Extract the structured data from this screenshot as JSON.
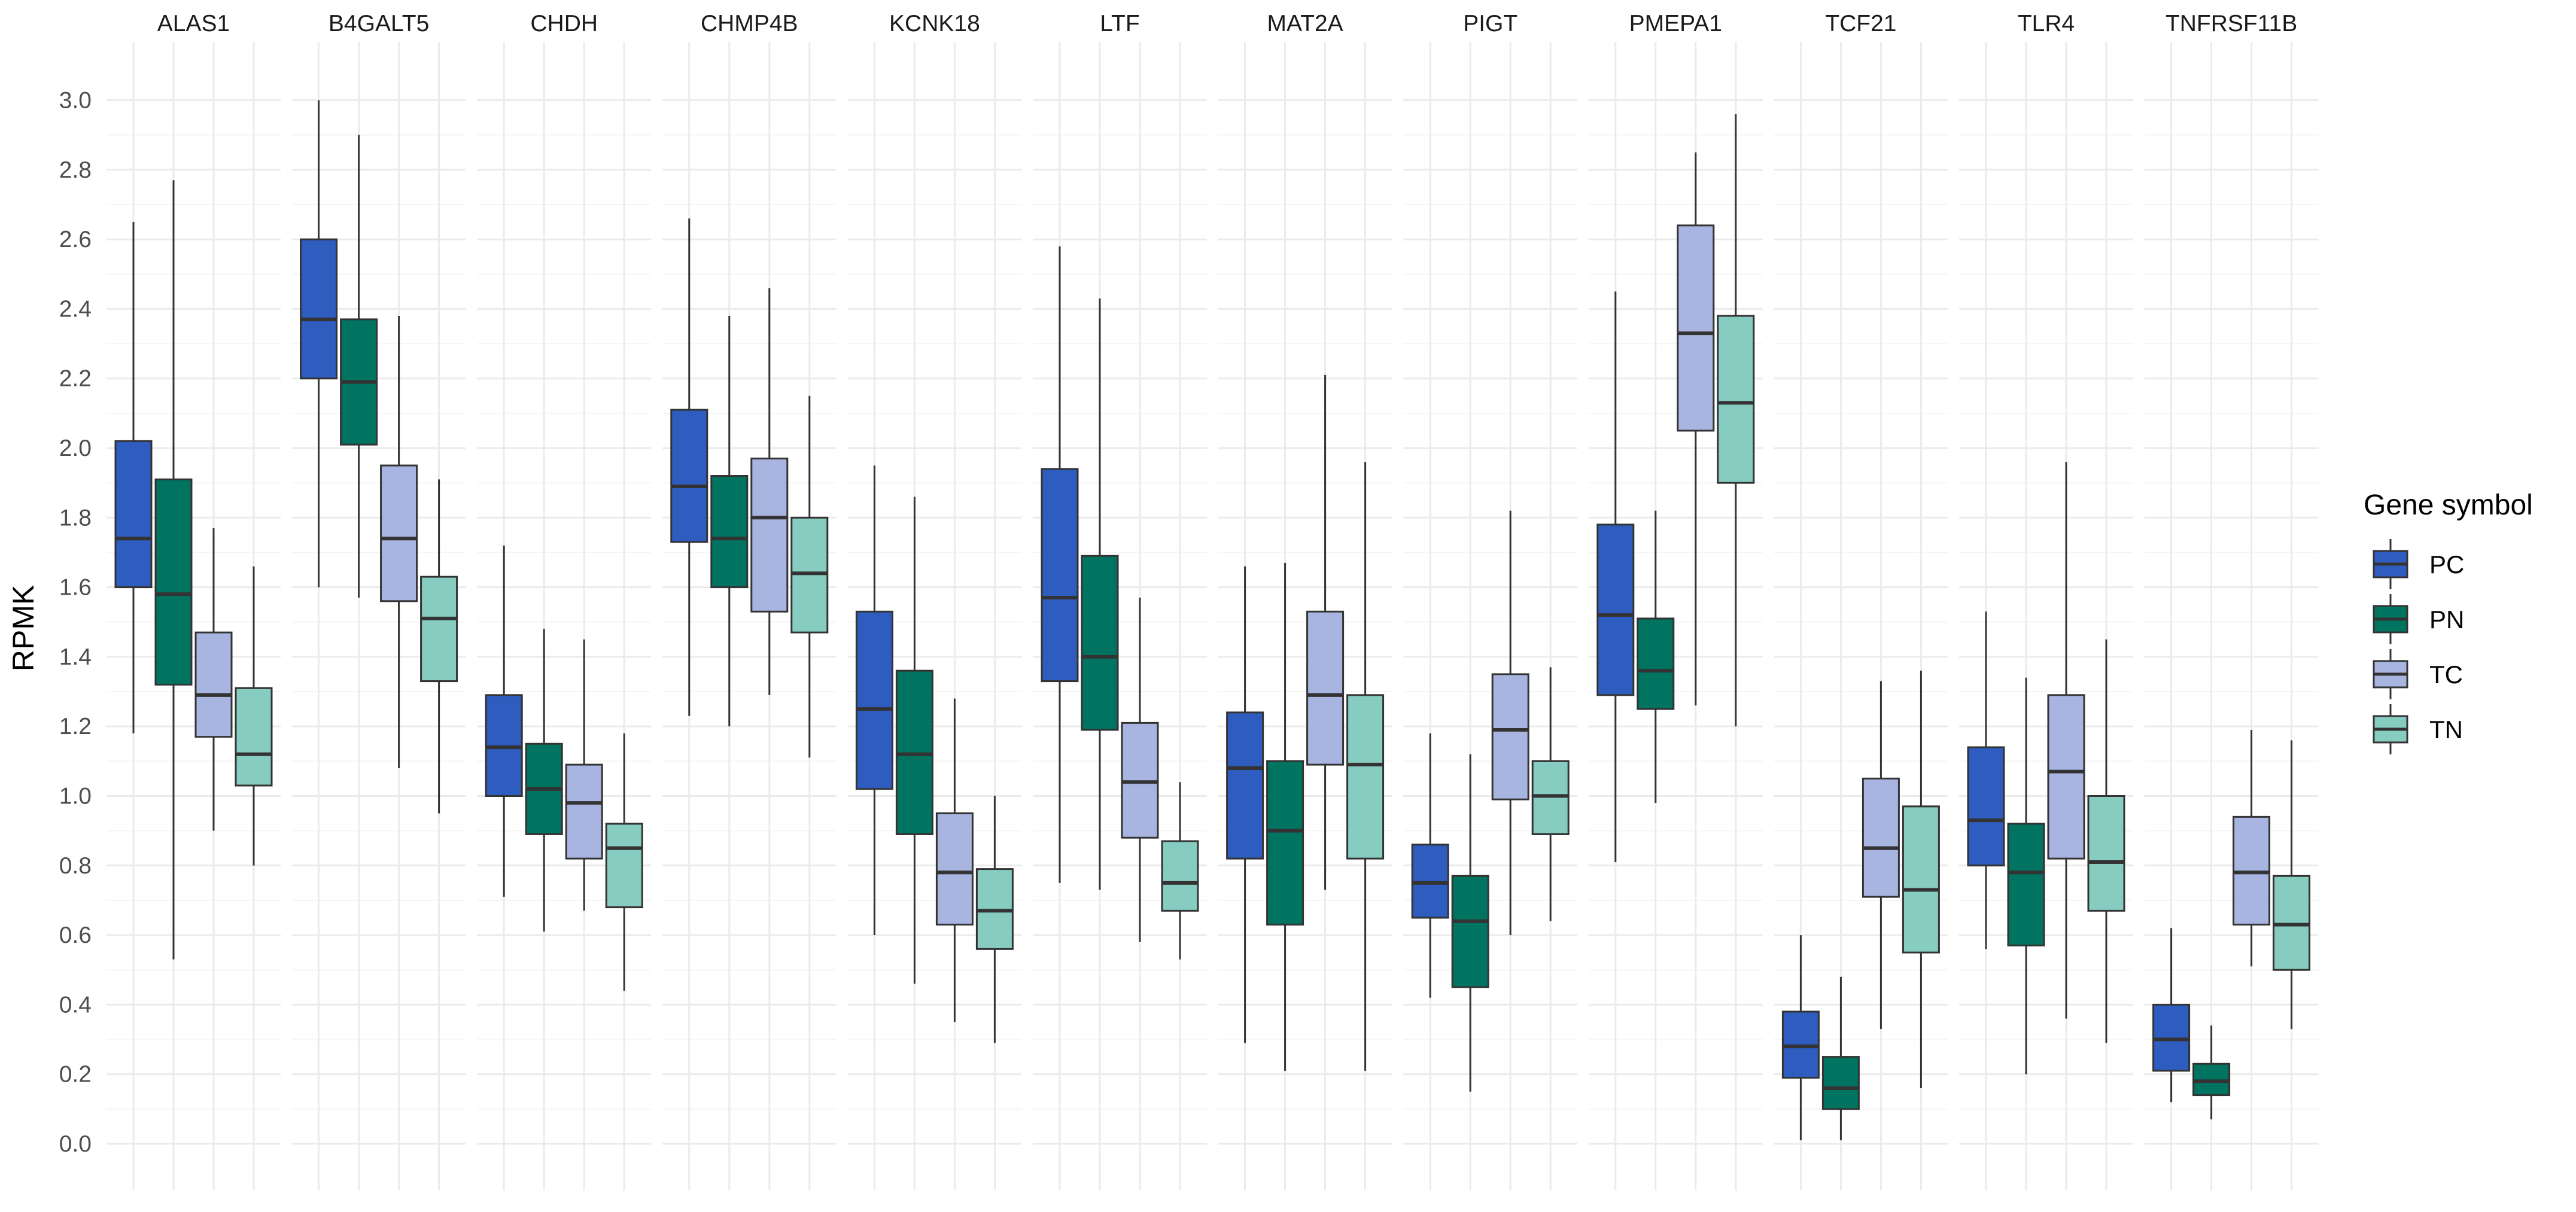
{
  "chart_data": {
    "type": "boxplot",
    "ylabel": "RPMK",
    "xlabel": "",
    "ylim": [
      -0.05,
      3.05
    ],
    "yticks": [
      "0.0",
      "0.2",
      "0.4",
      "0.6",
      "0.8",
      "1.0",
      "1.2",
      "1.4",
      "1.6",
      "1.8",
      "2.0",
      "2.2",
      "2.4",
      "2.6",
      "2.8",
      "3.0"
    ],
    "legend_title": "Gene symbol",
    "legend_position": "right",
    "groups": [
      {
        "name": "PC",
        "color": "#2E5CBF"
      },
      {
        "name": "PN",
        "color": "#007361"
      },
      {
        "name": "TC",
        "color": "#A8B5E0"
      },
      {
        "name": "TN",
        "color": "#86CCC0"
      }
    ],
    "facets": [
      {
        "name": "ALAS1",
        "boxes": [
          {
            "min": 1.18,
            "q1": 1.6,
            "median": 1.74,
            "q3": 2.02,
            "max": 2.65
          },
          {
            "min": 0.53,
            "q1": 1.32,
            "median": 1.58,
            "q3": 1.91,
            "max": 2.77
          },
          {
            "min": 0.9,
            "q1": 1.17,
            "median": 1.29,
            "q3": 1.47,
            "max": 1.77
          },
          {
            "min": 0.8,
            "q1": 1.03,
            "median": 1.12,
            "q3": 1.31,
            "max": 1.66
          }
        ]
      },
      {
        "name": "B4GALT5",
        "boxes": [
          {
            "min": 1.6,
            "q1": 2.2,
            "median": 2.37,
            "q3": 2.6,
            "max": 3.0
          },
          {
            "min": 1.57,
            "q1": 2.01,
            "median": 2.19,
            "q3": 2.37,
            "max": 2.9
          },
          {
            "min": 1.08,
            "q1": 1.56,
            "median": 1.74,
            "q3": 1.95,
            "max": 2.38
          },
          {
            "min": 0.95,
            "q1": 1.33,
            "median": 1.51,
            "q3": 1.63,
            "max": 1.91
          }
        ]
      },
      {
        "name": "CHDH",
        "boxes": [
          {
            "min": 0.71,
            "q1": 1.0,
            "median": 1.14,
            "q3": 1.29,
            "max": 1.72
          },
          {
            "min": 0.61,
            "q1": 0.89,
            "median": 1.02,
            "q3": 1.15,
            "max": 1.48
          },
          {
            "min": 0.67,
            "q1": 0.82,
            "median": 0.98,
            "q3": 1.09,
            "max": 1.45
          },
          {
            "min": 0.44,
            "q1": 0.68,
            "median": 0.85,
            "q3": 0.92,
            "max": 1.18
          }
        ]
      },
      {
        "name": "CHMP4B",
        "boxes": [
          {
            "min": 1.23,
            "q1": 1.73,
            "median": 1.89,
            "q3": 2.11,
            "max": 2.66
          },
          {
            "min": 1.2,
            "q1": 1.6,
            "median": 1.74,
            "q3": 1.92,
            "max": 2.38
          },
          {
            "min": 1.29,
            "q1": 1.53,
            "median": 1.8,
            "q3": 1.97,
            "max": 2.46
          },
          {
            "min": 1.11,
            "q1": 1.47,
            "median": 1.64,
            "q3": 1.8,
            "max": 2.15
          }
        ]
      },
      {
        "name": "KCNK18",
        "boxes": [
          {
            "min": 0.6,
            "q1": 1.02,
            "median": 1.25,
            "q3": 1.53,
            "max": 1.95
          },
          {
            "min": 0.46,
            "q1": 0.89,
            "median": 1.12,
            "q3": 1.36,
            "max": 1.86
          },
          {
            "min": 0.35,
            "q1": 0.63,
            "median": 0.78,
            "q3": 0.95,
            "max": 1.28
          },
          {
            "min": 0.29,
            "q1": 0.56,
            "median": 0.67,
            "q3": 0.79,
            "max": 1.0
          }
        ]
      },
      {
        "name": "LTF",
        "boxes": [
          {
            "min": 0.75,
            "q1": 1.33,
            "median": 1.57,
            "q3": 1.94,
            "max": 2.58
          },
          {
            "min": 0.73,
            "q1": 1.19,
            "median": 1.4,
            "q3": 1.69,
            "max": 2.43
          },
          {
            "min": 0.58,
            "q1": 0.88,
            "median": 1.04,
            "q3": 1.21,
            "max": 1.57
          },
          {
            "min": 0.53,
            "q1": 0.67,
            "median": 0.75,
            "q3": 0.87,
            "max": 1.04
          }
        ]
      },
      {
        "name": "MAT2A",
        "boxes": [
          {
            "min": 0.29,
            "q1": 0.82,
            "median": 1.08,
            "q3": 1.24,
            "max": 1.66
          },
          {
            "min": 0.21,
            "q1": 0.63,
            "median": 0.9,
            "q3": 1.1,
            "max": 1.67
          },
          {
            "min": 0.73,
            "q1": 1.09,
            "median": 1.29,
            "q3": 1.53,
            "max": 2.21
          },
          {
            "min": 0.21,
            "q1": 0.82,
            "median": 1.09,
            "q3": 1.29,
            "max": 1.96
          }
        ]
      },
      {
        "name": "PIGT",
        "boxes": [
          {
            "min": 0.42,
            "q1": 0.65,
            "median": 0.75,
            "q3": 0.86,
            "max": 1.18
          },
          {
            "min": 0.15,
            "q1": 0.45,
            "median": 0.64,
            "q3": 0.77,
            "max": 1.12
          },
          {
            "min": 0.6,
            "q1": 0.99,
            "median": 1.19,
            "q3": 1.35,
            "max": 1.82
          },
          {
            "min": 0.64,
            "q1": 0.89,
            "median": 1.0,
            "q3": 1.1,
            "max": 1.37
          }
        ]
      },
      {
        "name": "PMEPA1",
        "boxes": [
          {
            "min": 0.81,
            "q1": 1.29,
            "median": 1.52,
            "q3": 1.78,
            "max": 2.45
          },
          {
            "min": 0.98,
            "q1": 1.25,
            "median": 1.36,
            "q3": 1.51,
            "max": 1.82
          },
          {
            "min": 1.26,
            "q1": 2.05,
            "median": 2.33,
            "q3": 2.64,
            "max": 2.85
          },
          {
            "min": 1.2,
            "q1": 1.9,
            "median": 2.13,
            "q3": 2.38,
            "max": 2.96
          }
        ]
      },
      {
        "name": "TCF21",
        "boxes": [
          {
            "min": 0.01,
            "q1": 0.19,
            "median": 0.28,
            "q3": 0.38,
            "max": 0.6
          },
          {
            "min": 0.01,
            "q1": 0.1,
            "median": 0.16,
            "q3": 0.25,
            "max": 0.48
          },
          {
            "min": 0.33,
            "q1": 0.71,
            "median": 0.85,
            "q3": 1.05,
            "max": 1.33
          },
          {
            "min": 0.16,
            "q1": 0.55,
            "median": 0.73,
            "q3": 0.97,
            "max": 1.36
          }
        ]
      },
      {
        "name": "TLR4",
        "boxes": [
          {
            "min": 0.56,
            "q1": 0.8,
            "median": 0.93,
            "q3": 1.14,
            "max": 1.53
          },
          {
            "min": 0.2,
            "q1": 0.57,
            "median": 0.78,
            "q3": 0.92,
            "max": 1.34
          },
          {
            "min": 0.36,
            "q1": 0.82,
            "median": 1.07,
            "q3": 1.29,
            "max": 1.96
          },
          {
            "min": 0.29,
            "q1": 0.67,
            "median": 0.81,
            "q3": 1.0,
            "max": 1.45
          }
        ]
      },
      {
        "name": "TNFRSF11B",
        "boxes": [
          {
            "min": 0.12,
            "q1": 0.21,
            "median": 0.3,
            "q3": 0.4,
            "max": 0.62
          },
          {
            "min": 0.07,
            "q1": 0.14,
            "median": 0.18,
            "q3": 0.23,
            "max": 0.34
          },
          {
            "min": 0.51,
            "q1": 0.63,
            "median": 0.78,
            "q3": 0.94,
            "max": 1.19
          },
          {
            "min": 0.33,
            "q1": 0.5,
            "median": 0.63,
            "q3": 0.77,
            "max": 1.16
          }
        ]
      }
    ]
  }
}
